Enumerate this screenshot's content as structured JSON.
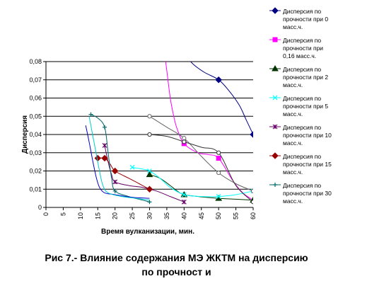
{
  "caption": {
    "line1": "Рис 7.- Влияние содержания МЭ ЖКТМ на дисперсию",
    "line2": "по прочност  и"
  },
  "chart_data": {
    "type": "line",
    "title": "",
    "xlabel": "Время вулканизации, мин.",
    "ylabel": "Дисперсия",
    "xlim": [
      0,
      60
    ],
    "ylim": [
      0,
      0.08
    ],
    "x_ticks": [
      "0",
      "5",
      "10",
      "15",
      "20",
      "25",
      "30",
      "35",
      "40",
      "45",
      "50",
      "55",
      "60"
    ],
    "y_ticks": [
      "0",
      "0,01",
      "0,02",
      "0,03",
      "0,04",
      "0,05",
      "0,06",
      "0,07",
      "0,08"
    ],
    "grid": "horizontal",
    "legend_position": "right",
    "series": [
      {
        "name": "Дисперсия по прочности при 0 масс.ч.",
        "color": "#000080",
        "marker": "diamond",
        "points": [
          [
            50,
            0.07
          ],
          [
            60,
            0.04
          ]
        ],
        "curve": [
          [
            35,
            0.099
          ],
          [
            37,
            0.094
          ],
          [
            39,
            0.088
          ],
          [
            41,
            0.082
          ],
          [
            43,
            0.078
          ],
          [
            46,
            0.074
          ],
          [
            50,
            0.07
          ],
          [
            53,
            0.064
          ],
          [
            56,
            0.056
          ],
          [
            58,
            0.048
          ],
          [
            60,
            0.04
          ]
        ]
      },
      {
        "name": "Дисперсия по прочности при 0,16 масс.ч.",
        "color": "#ff00ff",
        "marker": "square",
        "points": [
          [
            40,
            0.035
          ],
          [
            50,
            0.027
          ]
        ],
        "curve": [
          [
            34,
            0.09
          ],
          [
            35,
            0.075
          ],
          [
            36,
            0.06
          ],
          [
            37,
            0.05
          ],
          [
            38,
            0.043
          ],
          [
            40,
            0.035
          ],
          [
            44,
            0.03
          ],
          [
            47,
            0.029
          ],
          [
            50,
            0.027
          ],
          [
            54,
            0.015
          ],
          [
            57,
            0.008
          ],
          [
            60,
            0.004
          ]
        ]
      },
      {
        "name": "Дисперсия по прочности при 2 масс.ч.",
        "color": "#003300",
        "marker": "triangle",
        "points": [
          [
            30,
            0.018
          ],
          [
            40,
            0.007
          ],
          [
            50,
            0.005
          ],
          [
            60,
            0.004
          ]
        ],
        "curve": [
          [
            30,
            0.018
          ],
          [
            33,
            0.016
          ],
          [
            36,
            0.012
          ],
          [
            38,
            0.009
          ],
          [
            40,
            0.007
          ],
          [
            45,
            0.0058
          ],
          [
            50,
            0.005
          ],
          [
            55,
            0.0045
          ],
          [
            60,
            0.004
          ]
        ]
      },
      {
        "name": "Дисперсия по прочности при 5 масс.ч.",
        "color": "#00ffff",
        "marker": "x",
        "points": [
          [
            25,
            0.022
          ],
          [
            30,
            0.02
          ],
          [
            40,
            0.007
          ],
          [
            50,
            0.006
          ],
          [
            60,
            0.009
          ]
        ],
        "curve": [
          [
            25,
            0.022
          ],
          [
            28,
            0.021
          ],
          [
            30,
            0.02
          ],
          [
            33,
            0.016
          ],
          [
            36,
            0.011
          ],
          [
            40,
            0.007
          ],
          [
            45,
            0.006
          ],
          [
            50,
            0.006
          ],
          [
            55,
            0.007
          ],
          [
            60,
            0.009
          ]
        ]
      },
      {
        "name": "Дисперсия по прочности при 10 масс.ч.",
        "color": "#660066",
        "marker": "asterisk",
        "points": [
          [
            17,
            0.034
          ],
          [
            20,
            0.014
          ],
          [
            40,
            0.003
          ]
        ],
        "curve": [
          [
            17,
            0.034
          ],
          [
            18,
            0.025
          ],
          [
            19,
            0.018
          ],
          [
            20,
            0.014
          ],
          [
            24,
            0.012
          ],
          [
            28,
            0.011
          ],
          [
            32,
            0.009
          ],
          [
            36,
            0.006
          ],
          [
            40,
            0.003
          ]
        ]
      },
      {
        "name": "Дисперсия по прочности при 15 масс.ч.",
        "color": "#990000",
        "marker": "diamond",
        "points": [
          [
            15,
            0.027
          ],
          [
            17,
            0.027
          ],
          [
            20,
            0.02
          ],
          [
            30,
            0.01
          ]
        ],
        "curve": [
          [
            15,
            0.027
          ],
          [
            17,
            0.027
          ],
          [
            18.5,
            0.024
          ],
          [
            20,
            0.02
          ],
          [
            24,
            0.016
          ],
          [
            27,
            0.013
          ],
          [
            30,
            0.01
          ]
        ]
      },
      {
        "name": "Дисперсия по прочности при 30 масс.ч.",
        "color": "#006666",
        "marker": "plus",
        "points": [
          [
            13,
            0.051
          ],
          [
            17,
            0.044
          ],
          [
            20,
            0.009
          ],
          [
            30,
            0.003
          ]
        ],
        "curve": [
          [
            13,
            0.051
          ],
          [
            15,
            0.049
          ],
          [
            17,
            0.044
          ],
          [
            18,
            0.03
          ],
          [
            19,
            0.016
          ],
          [
            20,
            0.009
          ],
          [
            24,
            0.006
          ],
          [
            28,
            0.004
          ],
          [
            30,
            0.003
          ]
        ]
      },
      {
        "name": "",
        "color": "#0000cc",
        "marker": "none",
        "points": [],
        "curve": [
          [
            11.5,
            0.045
          ],
          [
            12.5,
            0.036
          ],
          [
            13.5,
            0.026
          ],
          [
            14.5,
            0.017
          ],
          [
            15.5,
            0.011
          ],
          [
            17,
            0.008
          ],
          [
            20,
            0.007
          ],
          [
            25,
            0.0055
          ],
          [
            30,
            0.005
          ]
        ]
      },
      {
        "name": "",
        "color": "#00cccc",
        "marker": "none",
        "points": [],
        "curve": [
          [
            12.5,
            0.05
          ],
          [
            13.5,
            0.04
          ],
          [
            14.5,
            0.03
          ],
          [
            15.5,
            0.02
          ],
          [
            16.5,
            0.012
          ],
          [
            18,
            0.008
          ],
          [
            22,
            0.006
          ],
          [
            26,
            0.005
          ],
          [
            30,
            0.004
          ]
        ]
      },
      {
        "name": "",
        "color": "#666666",
        "marker": "open-circle",
        "points": [
          [
            30,
            0.05
          ],
          [
            40,
            0.038
          ],
          [
            50,
            0.019
          ],
          [
            60,
            0.009
          ]
        ],
        "curve": [
          [
            30,
            0.05
          ],
          [
            35,
            0.044
          ],
          [
            40,
            0.038
          ],
          [
            45,
            0.028
          ],
          [
            50,
            0.019
          ],
          [
            55,
            0.013
          ],
          [
            60,
            0.009
          ]
        ]
      },
      {
        "name": "",
        "color": "#333333",
        "marker": "open-circle",
        "points": [
          [
            30,
            0.04
          ],
          [
            40,
            0.036
          ],
          [
            50,
            0.03
          ],
          [
            60,
            0.003
          ]
        ],
        "curve": [
          [
            30,
            0.04
          ],
          [
            35,
            0.039
          ],
          [
            40,
            0.036
          ],
          [
            45,
            0.033
          ],
          [
            50,
            0.03
          ],
          [
            55,
            0.012
          ],
          [
            60,
            0.003
          ]
        ]
      }
    ]
  }
}
